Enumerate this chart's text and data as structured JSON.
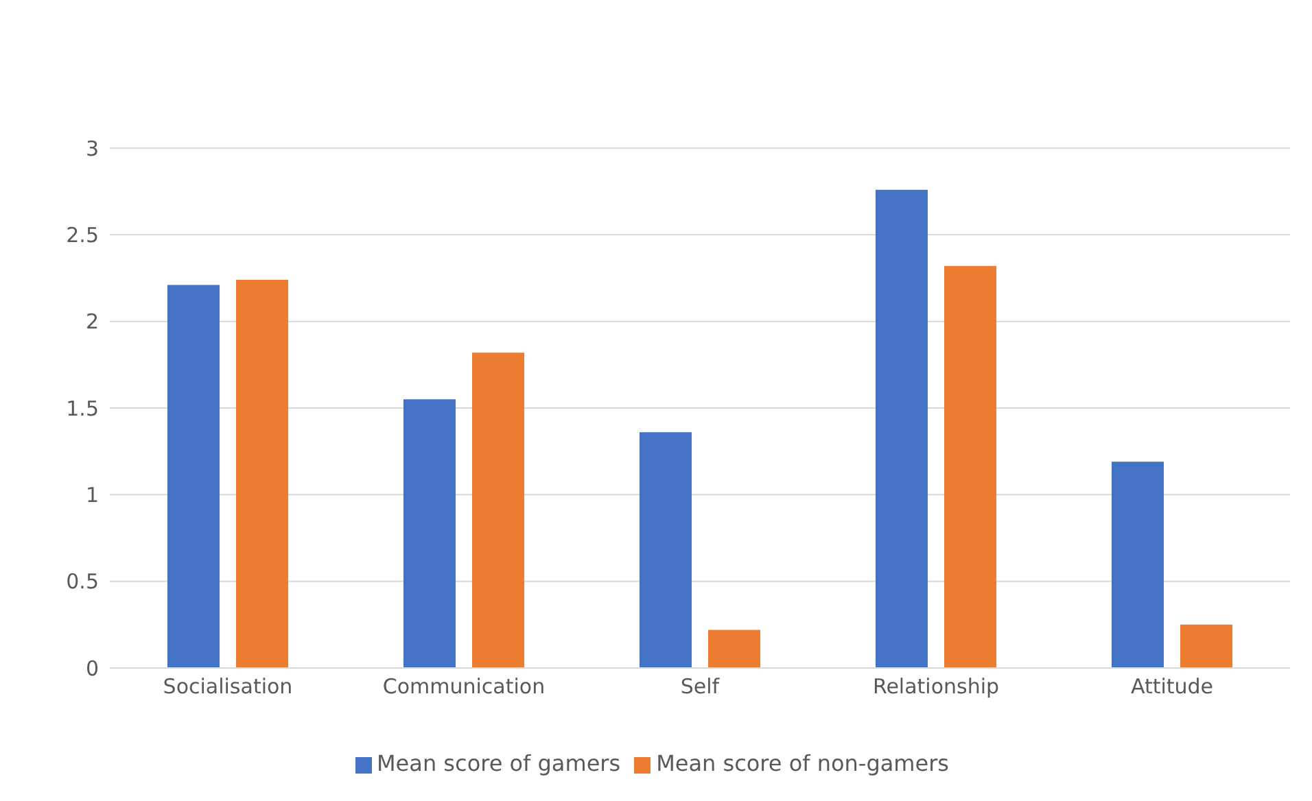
{
  "chart_data": {
    "type": "bar",
    "categories": [
      "Socialisation",
      "Communication",
      "Self",
      "Relationship",
      "Attitude"
    ],
    "series": [
      {
        "name": "Mean score of gamers",
        "color": "#4472c4",
        "values": [
          2.21,
          1.55,
          1.36,
          2.76,
          1.19
        ]
      },
      {
        "name": "Mean score of non-gamers",
        "color": "#ed7d31",
        "values": [
          2.24,
          1.82,
          0.22,
          2.32,
          0.25
        ]
      }
    ],
    "ylim": [
      0,
      3
    ],
    "yticks": [
      0,
      0.5,
      1,
      1.5,
      2,
      2.5,
      3
    ],
    "grid": "y",
    "legend": "bottom"
  }
}
